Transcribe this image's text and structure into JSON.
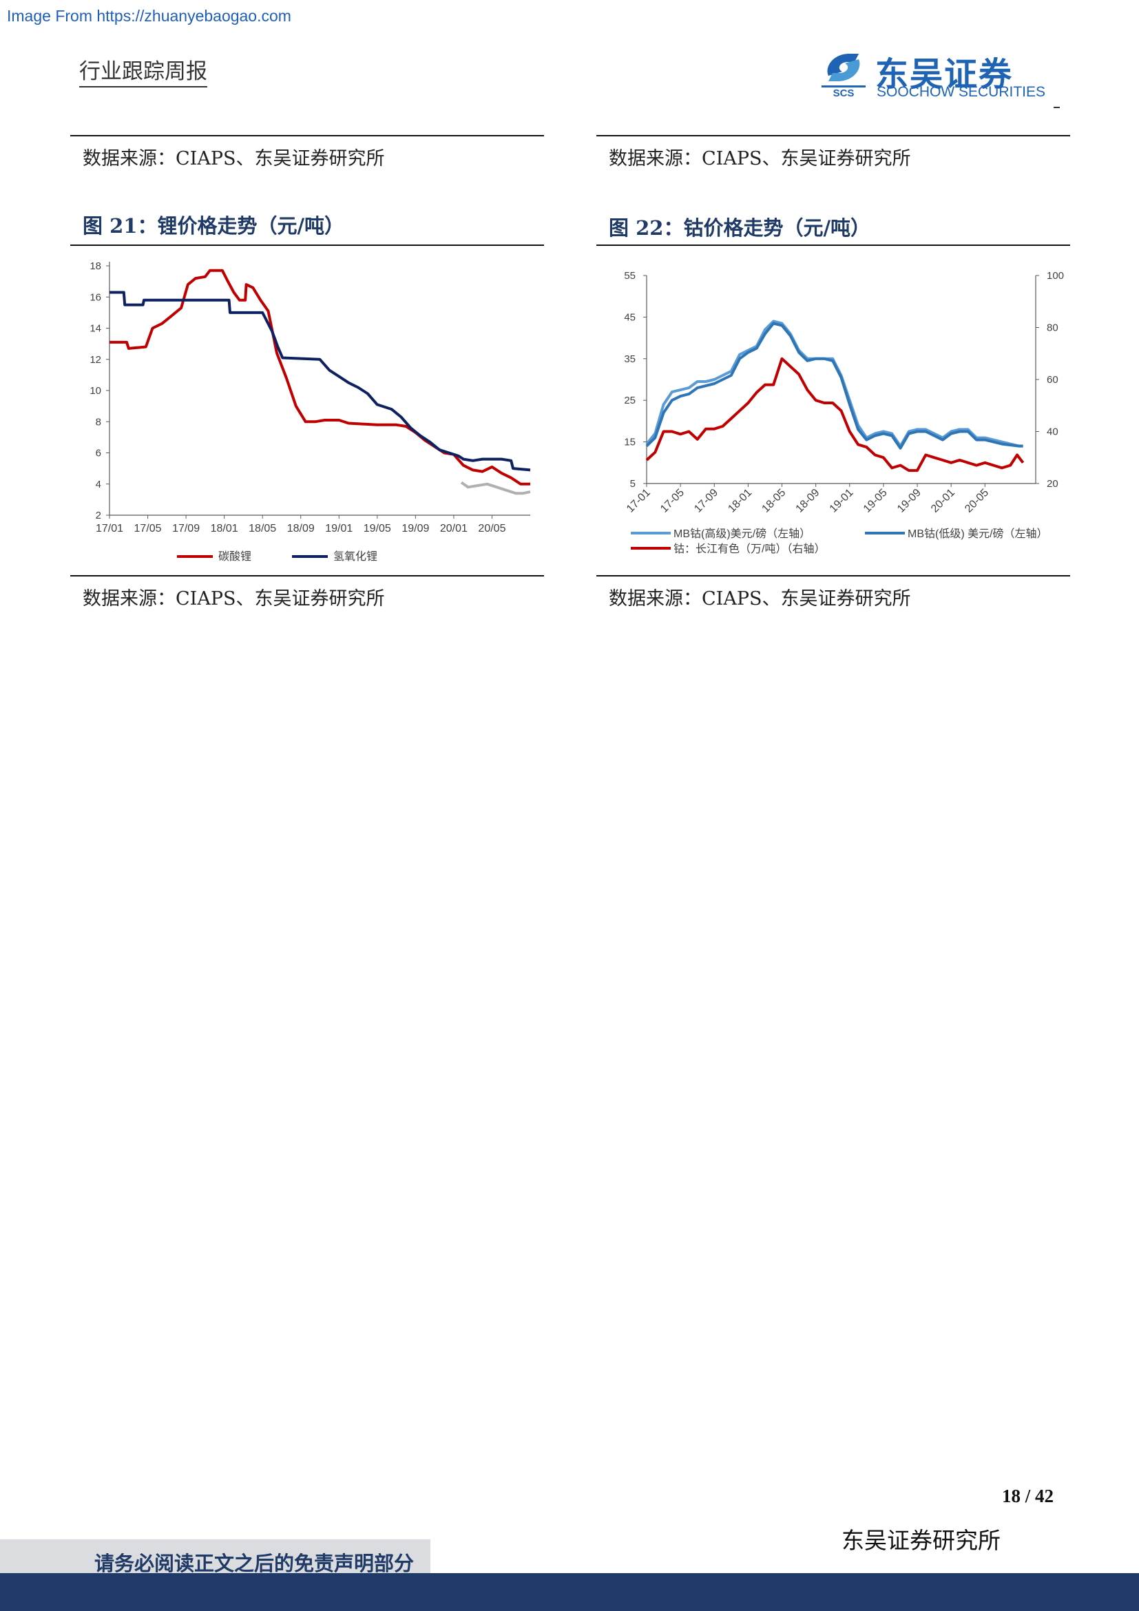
{
  "watermark": "Image From https://zhuanyebaogao.com",
  "header": {
    "report_type": "行业跟踪周报",
    "logo_cn": "东吴证券",
    "logo_en": "SOOCHOW SECURITIES",
    "logo_mark_text": "SCS",
    "colors": {
      "brand_blue": "#1f63b4",
      "navy": "#1f3a66"
    }
  },
  "left": {
    "source_top": "数据来源：CIAPS、东吴证券研究所",
    "figure_title": "图 21：锂价格走势（元/吨）",
    "source_bottom": "数据来源：CIAPS、东吴证券研究所"
  },
  "right": {
    "source_top": "数据来源：CIAPS、东吴证券研究所",
    "figure_title": "图 22：钴价格走势（元/吨）",
    "source_bottom": "数据来源：CIAPS、东吴证券研究所"
  },
  "chart_data": [
    {
      "type": "line",
      "title": "图 21：锂价格走势（元/吨）",
      "x_ticks": [
        "17/01",
        "17/05",
        "17/09",
        "18/01",
        "18/05",
        "18/09",
        "19/01",
        "19/05",
        "19/09",
        "20/01",
        "20/05"
      ],
      "y_ticks": [
        "2",
        "4",
        "6",
        "8",
        "10",
        "12",
        "14",
        "16",
        "18"
      ],
      "ylim": [
        2,
        18
      ],
      "xlim": [
        0,
        44
      ],
      "legend_position": "bottom",
      "grid": false,
      "series": [
        {
          "name": "碳酸锂",
          "color": "#c00000",
          "points": [
            [
              0,
              13.1
            ],
            [
              1.8,
              13.1
            ],
            [
              2,
              12.7
            ],
            [
              3.8,
              12.8
            ],
            [
              4.5,
              14.0
            ],
            [
              5.5,
              14.3
            ],
            [
              6.5,
              14.8
            ],
            [
              7.5,
              15.3
            ],
            [
              8.2,
              16.8
            ],
            [
              9,
              17.2
            ],
            [
              10,
              17.3
            ],
            [
              10.5,
              17.7
            ],
            [
              11.8,
              17.7
            ],
            [
              12.3,
              17.1
            ],
            [
              13,
              16.3
            ],
            [
              13.6,
              15.8
            ],
            [
              14.2,
              15.8
            ],
            [
              14.3,
              16.8
            ],
            [
              15,
              16.6
            ],
            [
              15.8,
              15.8
            ],
            [
              16.6,
              15.1
            ],
            [
              17.5,
              12.4
            ],
            [
              18.5,
              10.8
            ],
            [
              19.5,
              9.0
            ],
            [
              20.5,
              8.0
            ],
            [
              21.5,
              8.0
            ],
            [
              22.5,
              8.1
            ],
            [
              24,
              8.1
            ],
            [
              25,
              7.9
            ],
            [
              28,
              7.8
            ],
            [
              30,
              7.8
            ],
            [
              31,
              7.7
            ],
            [
              32,
              7.3
            ],
            [
              33,
              6.8
            ],
            [
              34,
              6.4
            ],
            [
              35,
              6.0
            ],
            [
              36,
              5.9
            ],
            [
              37,
              5.2
            ],
            [
              38,
              4.9
            ],
            [
              39,
              4.8
            ],
            [
              40,
              5.1
            ],
            [
              41,
              4.7
            ],
            [
              42,
              4.4
            ],
            [
              43,
              4.0
            ],
            [
              44,
              4.0
            ]
          ]
        },
        {
          "name": "氢氧化锂",
          "color": "#0d2060",
          "points": [
            [
              0,
              16.3
            ],
            [
              1.5,
              16.3
            ],
            [
              1.6,
              15.5
            ],
            [
              3.5,
              15.5
            ],
            [
              3.6,
              15.8
            ],
            [
              12.5,
              15.8
            ],
            [
              12.6,
              15.0
            ],
            [
              16,
              15.0
            ],
            [
              17,
              13.8
            ],
            [
              17.6,
              12.8
            ],
            [
              18.1,
              12.1
            ],
            [
              22,
              12.0
            ],
            [
              23,
              11.3
            ],
            [
              24,
              10.9
            ],
            [
              25,
              10.5
            ],
            [
              26,
              10.2
            ],
            [
              27,
              9.8
            ],
            [
              28,
              9.1
            ],
            [
              29.5,
              8.8
            ],
            [
              30.5,
              8.3
            ],
            [
              31.5,
              7.6
            ],
            [
              32.5,
              7.1
            ],
            [
              33.5,
              6.7
            ],
            [
              34.5,
              6.2
            ],
            [
              35.5,
              6.0
            ],
            [
              36.5,
              5.8
            ],
            [
              37,
              5.6
            ],
            [
              38,
              5.5
            ],
            [
              39,
              5.6
            ],
            [
              40,
              5.6
            ],
            [
              41,
              5.6
            ],
            [
              42,
              5.5
            ],
            [
              42.2,
              5.0
            ],
            [
              44,
              4.9
            ]
          ]
        },
        {
          "name": "",
          "color": "#b0b0b0",
          "points": [
            [
              36.8,
              4.1
            ],
            [
              37.5,
              3.8
            ],
            [
              38.5,
              3.9
            ],
            [
              39.5,
              4.0
            ],
            [
              40.5,
              3.8
            ],
            [
              41.5,
              3.6
            ],
            [
              42.5,
              3.4
            ],
            [
              43.2,
              3.4
            ],
            [
              44,
              3.5
            ]
          ]
        }
      ]
    },
    {
      "type": "line",
      "title": "图 22：钴价格走势（元/吨）",
      "x_ticks": [
        "17-01",
        "17-05",
        "17-09",
        "18-01",
        "18-05",
        "18-09",
        "19-01",
        "19-05",
        "19-09",
        "20-01",
        "20-05"
      ],
      "y_ticks_left": [
        "5",
        "15",
        "25",
        "35",
        "45",
        "55"
      ],
      "y_ticks_right": [
        "20",
        "40",
        "60",
        "80",
        "100"
      ],
      "ylim_left": [
        5,
        55
      ],
      "ylim_right": [
        20,
        100
      ],
      "xlim": [
        0,
        46
      ],
      "legend_position": "bottom",
      "grid": false,
      "series": [
        {
          "name": "MB钴(高级)美元/磅（左轴）",
          "axis": "left",
          "color": "#5b9bd5",
          "points": [
            [
              0,
              14.5
            ],
            [
              1,
              17
            ],
            [
              2,
              24
            ],
            [
              3,
              27
            ],
            [
              4,
              27.5
            ],
            [
              5,
              28
            ],
            [
              6,
              29.5
            ],
            [
              7,
              29.5
            ],
            [
              8,
              30
            ],
            [
              9,
              31
            ],
            [
              10,
              32
            ],
            [
              11,
              36
            ],
            [
              12,
              37
            ],
            [
              13,
              38
            ],
            [
              14,
              42
            ],
            [
              15,
              44
            ],
            [
              16,
              43.5
            ],
            [
              17,
              41
            ],
            [
              18,
              37
            ],
            [
              19,
              35
            ],
            [
              20,
              35
            ],
            [
              21,
              35
            ],
            [
              22,
              35
            ],
            [
              23,
              31
            ],
            [
              24,
              25
            ],
            [
              25,
              19
            ],
            [
              26,
              16
            ],
            [
              27,
              17
            ],
            [
              28,
              17.5
            ],
            [
              29,
              17
            ],
            [
              30,
              14
            ],
            [
              31,
              17.5
            ],
            [
              32,
              18
            ],
            [
              33,
              18
            ],
            [
              34,
              17
            ],
            [
              35,
              16
            ],
            [
              36,
              17.5
            ],
            [
              37,
              18
            ],
            [
              38,
              18
            ],
            [
              39,
              16
            ],
            [
              40,
              16
            ],
            [
              42,
              15
            ],
            [
              44,
              14
            ],
            [
              44.5,
              14
            ]
          ]
        },
        {
          "name": "MB钴(低级) 美元/磅（左轴）",
          "axis": "left",
          "color": "#2e75b6",
          "points": [
            [
              0,
              14
            ],
            [
              1,
              16
            ],
            [
              2,
              22
            ],
            [
              3,
              25
            ],
            [
              4,
              26
            ],
            [
              5,
              26.5
            ],
            [
              6,
              28
            ],
            [
              7,
              28.5
            ],
            [
              8,
              29
            ],
            [
              9,
              30
            ],
            [
              10,
              31
            ],
            [
              11,
              35
            ],
            [
              12,
              36.5
            ],
            [
              13,
              37.5
            ],
            [
              14,
              41
            ],
            [
              15,
              43.5
            ],
            [
              16,
              43
            ],
            [
              17,
              40.5
            ],
            [
              18,
              36.5
            ],
            [
              19,
              34.5
            ],
            [
              20,
              35
            ],
            [
              21,
              35
            ],
            [
              22,
              34.5
            ],
            [
              23,
              30.5
            ],
            [
              24,
              24
            ],
            [
              25,
              18
            ],
            [
              26,
              15.5
            ],
            [
              27,
              16.5
            ],
            [
              28,
              17
            ],
            [
              29,
              16.5
            ],
            [
              30,
              13.5
            ],
            [
              31,
              17
            ],
            [
              32,
              17.5
            ],
            [
              33,
              17.5
            ],
            [
              34,
              16.5
            ],
            [
              35,
              15.5
            ],
            [
              36,
              17
            ],
            [
              37,
              17.5
            ],
            [
              38,
              17.5
            ],
            [
              39,
              15.5
            ],
            [
              40,
              15.5
            ],
            [
              42,
              14.5
            ],
            [
              44,
              14
            ],
            [
              44.5,
              14
            ]
          ]
        },
        {
          "name": "钴：长江有色（万/吨）（右轴）",
          "axis": "right",
          "color": "#c00000",
          "points": [
            [
              0,
              29
            ],
            [
              1,
              32
            ],
            [
              2,
              40
            ],
            [
              3,
              40
            ],
            [
              4,
              39
            ],
            [
              5,
              40
            ],
            [
              6,
              37
            ],
            [
              7,
              41
            ],
            [
              8,
              41
            ],
            [
              9,
              42
            ],
            [
              10,
              45
            ],
            [
              11,
              48
            ],
            [
              12,
              51
            ],
            [
              13,
              55
            ],
            [
              14,
              58
            ],
            [
              15,
              58
            ],
            [
              16,
              68
            ],
            [
              17,
              65
            ],
            [
              18,
              62
            ],
            [
              19,
              56
            ],
            [
              20,
              52
            ],
            [
              21,
              51
            ],
            [
              22,
              51
            ],
            [
              23,
              48
            ],
            [
              24,
              40
            ],
            [
              25,
              35
            ],
            [
              26,
              34
            ],
            [
              27,
              31
            ],
            [
              28,
              30
            ],
            [
              29,
              26
            ],
            [
              30,
              27
            ],
            [
              31,
              25
            ],
            [
              32,
              25
            ],
            [
              33,
              31
            ],
            [
              34,
              30
            ],
            [
              35,
              29
            ],
            [
              36,
              28
            ],
            [
              37,
              29
            ],
            [
              38,
              28
            ],
            [
              39,
              27
            ],
            [
              40,
              28
            ],
            [
              42,
              26
            ],
            [
              43,
              27
            ],
            [
              43.8,
              31
            ],
            [
              44.5,
              28
            ]
          ]
        }
      ]
    }
  ],
  "footer": {
    "page_number": "18 / 42",
    "institution": "东吴证券研究所",
    "disclaimer": "请务必阅读正文之后的免责声明部分"
  }
}
